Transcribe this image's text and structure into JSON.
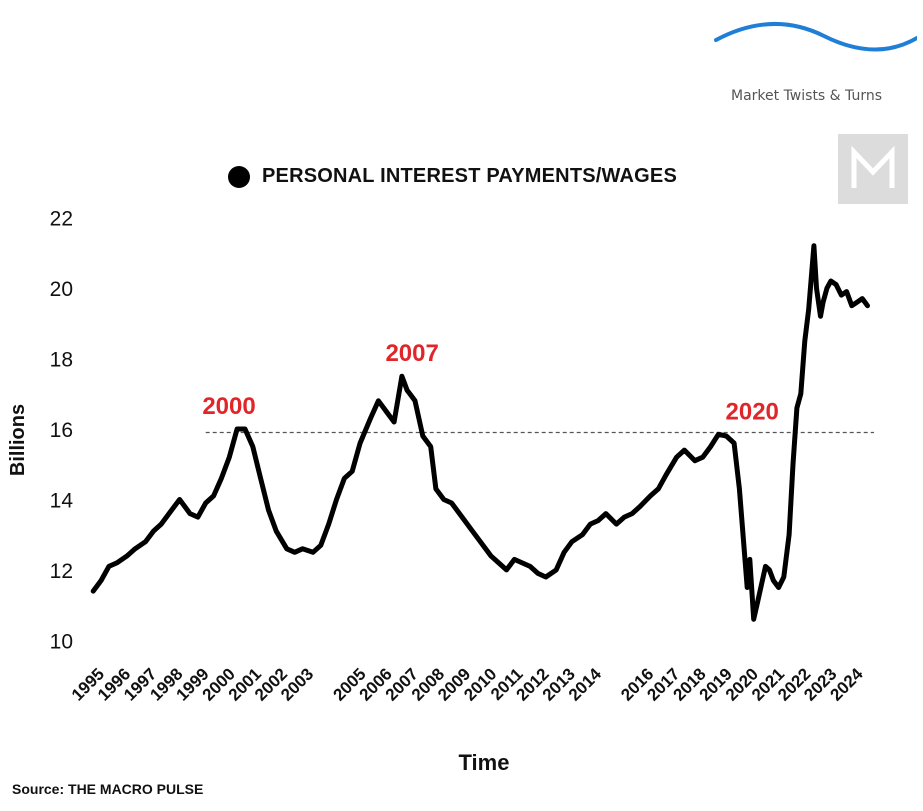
{
  "brand": {
    "name": "Market Twists & Turns",
    "wave_color": "#1f7fd6",
    "logo_icon": "m-monogram-icon",
    "logo_bg": "#dcdcdc"
  },
  "source": "Source: THE MACRO PULSE",
  "colors": {
    "line": "#000000",
    "annotation": "#e0262b",
    "reference": "#555555"
  },
  "chart_data": {
    "type": "line",
    "title": "",
    "xlabel": "Time",
    "ylabel": "Billions",
    "legend": {
      "label": "PERSONAL INTEREST PAYMENTS/WAGES",
      "position": "top-center"
    },
    "ylim": [
      9.5,
      22.5
    ],
    "yticks": [
      10,
      12,
      14,
      16,
      18,
      20,
      22
    ],
    "xlim": [
      1994.8,
      2025.0
    ],
    "xticks": [
      1995,
      1996,
      1997,
      1998,
      1999,
      2000,
      2001,
      2002,
      2003,
      2005,
      2006,
      2007,
      2008,
      2009,
      2010,
      2011,
      2012,
      2013,
      2014,
      2016,
      2017,
      2018,
      2019,
      2020,
      2021,
      2022,
      2023,
      2024
    ],
    "grid": false,
    "reference_line": {
      "y": 15.9,
      "style": "dashed"
    },
    "annotations": [
      {
        "text": "2000",
        "x": 2000.0,
        "y": 16.0
      },
      {
        "text": "2007",
        "x": 2007.0,
        "y": 17.5
      },
      {
        "text": "2020",
        "x": 2020.0,
        "y": 15.85
      }
    ],
    "series": [
      {
        "name": "PERSONAL INTEREST PAYMENTS/WAGES",
        "x": [
          1995.0,
          1995.3,
          1995.6,
          1995.9,
          1996.3,
          1996.6,
          1997.0,
          1997.3,
          1997.6,
          1998.0,
          1998.3,
          1998.7,
          1999.0,
          1999.3,
          1999.6,
          1999.9,
          2000.2,
          2000.5,
          2000.8,
          2001.1,
          2001.4,
          2001.7,
          2002.0,
          2002.4,
          2002.7,
          2003.0,
          2003.4,
          2003.7,
          2004.0,
          2004.3,
          2004.6,
          2004.9,
          2005.2,
          2005.6,
          2005.9,
          2006.2,
          2006.5,
          2006.8,
          2007.0,
          2007.1,
          2007.3,
          2007.6,
          2007.9,
          2008.1,
          2008.4,
          2008.7,
          2009.1,
          2009.5,
          2009.9,
          2010.2,
          2010.5,
          2010.8,
          2011.1,
          2011.4,
          2011.7,
          2012.0,
          2012.3,
          2012.7,
          2013.0,
          2013.3,
          2013.7,
          2014.0,
          2014.3,
          2014.6,
          2015.0,
          2015.3,
          2015.6,
          2015.9,
          2016.3,
          2016.6,
          2016.9,
          2017.3,
          2017.6,
          2018.0,
          2018.3,
          2018.6,
          2018.9,
          2019.2,
          2019.5,
          2019.7,
          2020.0,
          2020.1,
          2020.25,
          2020.4,
          2020.55,
          2020.7,
          2020.85,
          2021.0,
          2021.2,
          2021.4,
          2021.6,
          2021.75,
          2021.9,
          2022.05,
          2022.2,
          2022.35,
          2022.55,
          2022.65,
          2022.8,
          2022.9,
          2023.05,
          2023.2,
          2023.4,
          2023.6,
          2023.8,
          2024.0,
          2024.2,
          2024.4,
          2024.6
        ],
        "y": [
          11.4,
          11.7,
          12.1,
          12.2,
          12.4,
          12.6,
          12.8,
          13.1,
          13.3,
          13.7,
          14.0,
          13.6,
          13.5,
          13.9,
          14.1,
          14.6,
          15.2,
          16.0,
          16.0,
          15.5,
          14.6,
          13.7,
          13.1,
          12.6,
          12.5,
          12.6,
          12.5,
          12.7,
          13.3,
          14.0,
          14.6,
          14.8,
          15.6,
          16.3,
          16.8,
          16.5,
          16.2,
          17.5,
          17.1,
          17.0,
          16.8,
          15.8,
          15.5,
          14.3,
          14.0,
          13.9,
          13.5,
          13.1,
          12.7,
          12.4,
          12.2,
          12.0,
          12.3,
          12.2,
          12.1,
          11.9,
          11.8,
          12.0,
          12.5,
          12.8,
          13.0,
          13.3,
          13.4,
          13.6,
          13.3,
          13.5,
          13.6,
          13.8,
          14.1,
          14.3,
          14.7,
          15.2,
          15.4,
          15.1,
          15.2,
          15.5,
          15.85,
          15.8,
          15.6,
          14.3,
          11.5,
          12.3,
          10.6,
          11.1,
          11.6,
          12.1,
          12.0,
          11.7,
          11.5,
          11.8,
          13.0,
          15.0,
          16.6,
          17.0,
          18.5,
          19.4,
          21.2,
          20.0,
          19.2,
          19.6,
          20.0,
          20.2,
          20.1,
          19.8,
          19.9,
          19.5,
          19.6,
          19.7,
          19.5
        ]
      }
    ]
  }
}
